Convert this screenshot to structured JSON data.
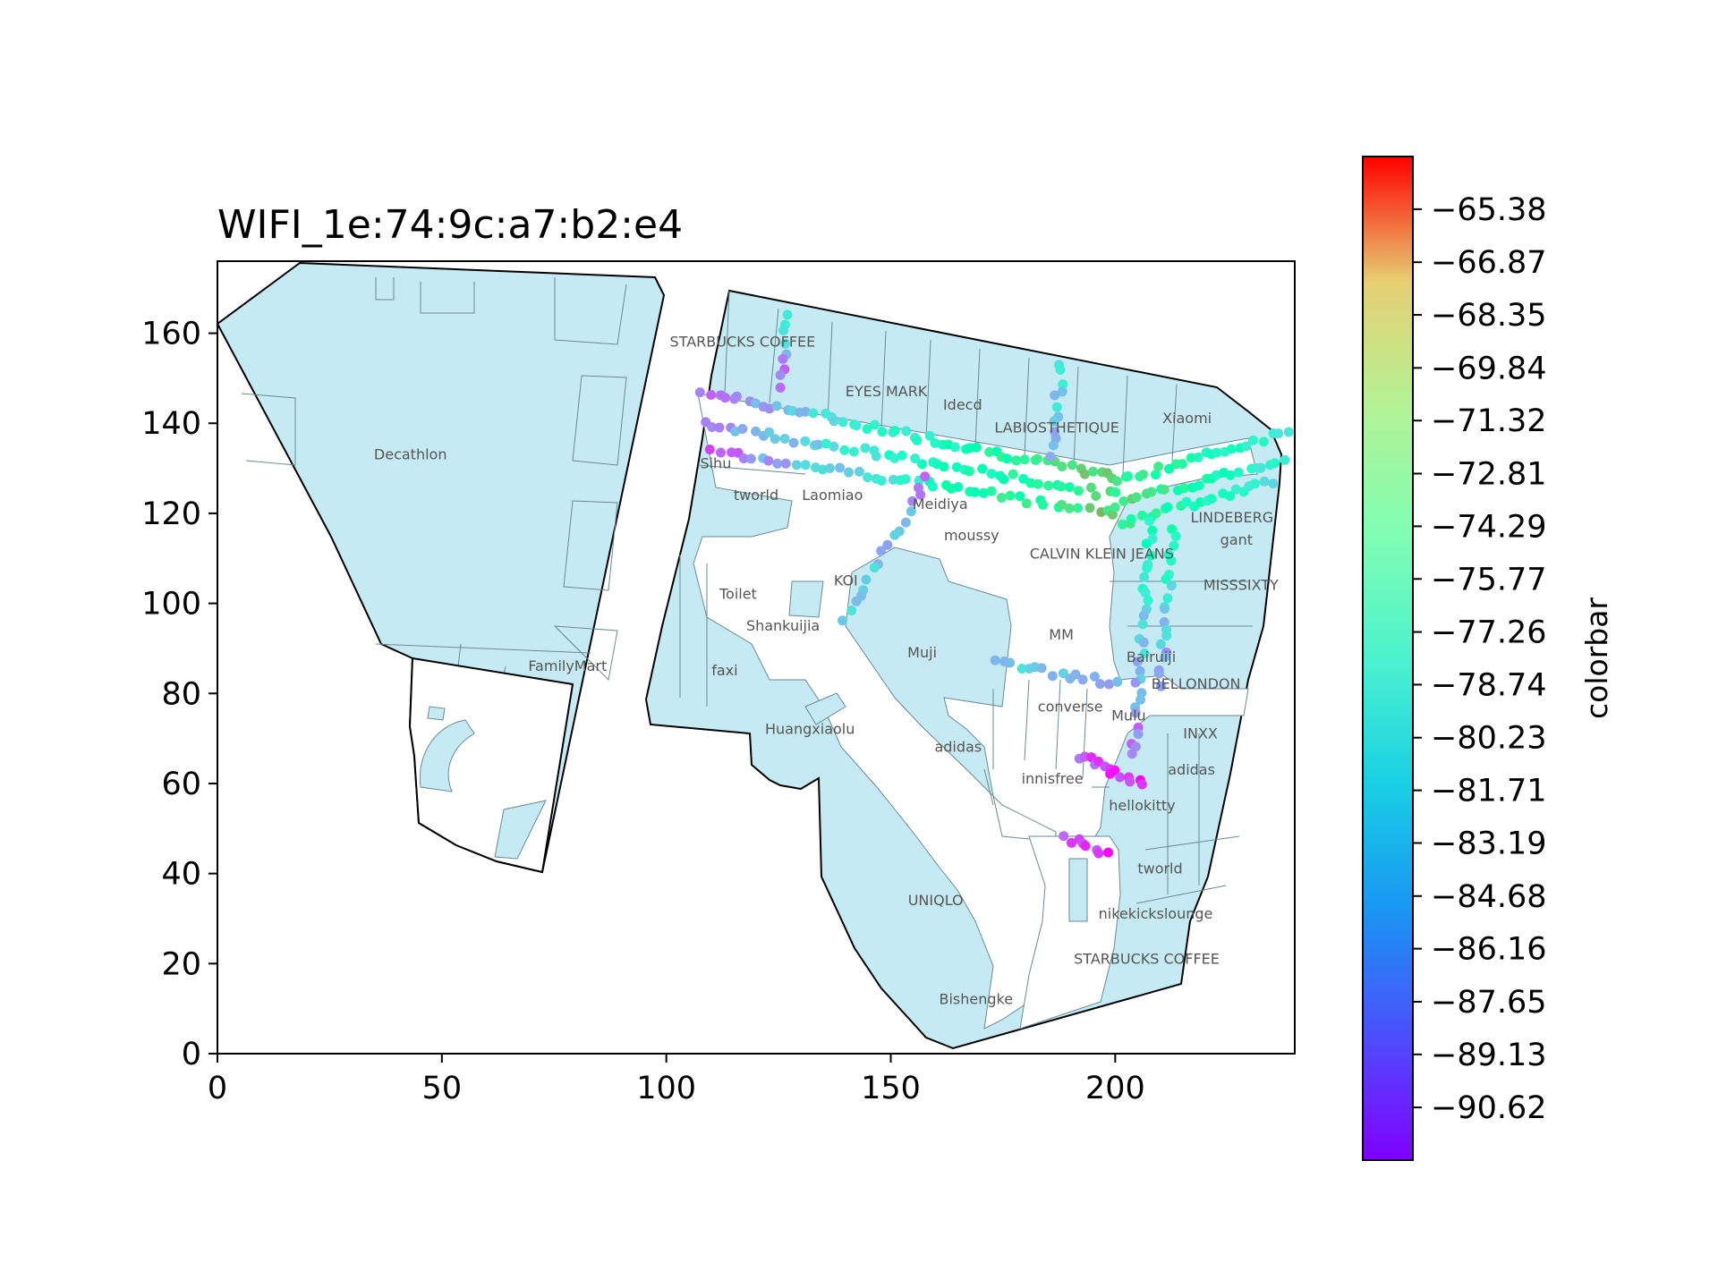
{
  "chart_data": {
    "type": "scatter",
    "title": "WIFI_1e:74:9c:a7:b2:e4",
    "xlabel": "",
    "ylabel": "",
    "xlim": [
      0,
      240
    ],
    "ylim": [
      0,
      176
    ],
    "x_ticks": [
      "0",
      "50",
      "100",
      "150",
      "200"
    ],
    "y_ticks": [
      "0",
      "20",
      "40",
      "60",
      "80",
      "100",
      "120",
      "140",
      "160"
    ],
    "grid": false,
    "colormap": "rainbow",
    "colorbar": {
      "label": "colorbar",
      "range": [
        -92.1,
        -63.9
      ],
      "ticks": [
        "−65.38",
        "−66.87",
        "−68.35",
        "−69.84",
        "−71.32",
        "−72.81",
        "−74.29",
        "−75.77",
        "−77.26",
        "−78.74",
        "−80.23",
        "−81.71",
        "−83.19",
        "−84.68",
        "−86.16",
        "−87.65",
        "−89.13",
        "−90.62"
      ]
    },
    "floor_colors": {
      "fill": "#c5eaf3",
      "edge": "#000000"
    },
    "store_labels": [
      {
        "name": "Decathlon",
        "x": 43,
        "y": 132
      },
      {
        "name": "FamilyMart",
        "x": 78,
        "y": 85
      },
      {
        "name": "STARBUCKS COFFEE",
        "x": 117,
        "y": 157
      },
      {
        "name": "EYES MARK",
        "x": 149,
        "y": 146
      },
      {
        "name": "Idecd",
        "x": 166,
        "y": 143
      },
      {
        "name": "LABIOSTHETIQUE",
        "x": 187,
        "y": 138
      },
      {
        "name": "Xiaomi",
        "x": 216,
        "y": 140
      },
      {
        "name": "Sihu",
        "x": 111,
        "y": 130
      },
      {
        "name": "tworld",
        "x": 120,
        "y": 123
      },
      {
        "name": "Laomiao",
        "x": 137,
        "y": 123
      },
      {
        "name": "Meidiya",
        "x": 161,
        "y": 121
      },
      {
        "name": "moussy",
        "x": 168,
        "y": 114
      },
      {
        "name": "CALVIN KLEIN JEANS",
        "x": 197,
        "y": 110
      },
      {
        "name": "LINDEBERG",
        "x": 226,
        "y": 118
      },
      {
        "name": "gant",
        "x": 227,
        "y": 113
      },
      {
        "name": "KOI",
        "x": 140,
        "y": 104
      },
      {
        "name": "Toilet",
        "x": 116,
        "y": 101
      },
      {
        "name": "MISSSIXTY",
        "x": 228,
        "y": 103
      },
      {
        "name": "Shankuijia",
        "x": 126,
        "y": 94
      },
      {
        "name": "MM",
        "x": 188,
        "y": 92
      },
      {
        "name": "Muji",
        "x": 157,
        "y": 88
      },
      {
        "name": "faxi",
        "x": 113,
        "y": 84
      },
      {
        "name": "Bairuiji",
        "x": 208,
        "y": 87
      },
      {
        "name": "BELLONDON",
        "x": 218,
        "y": 81
      },
      {
        "name": "converse",
        "x": 190,
        "y": 76
      },
      {
        "name": "Mulu",
        "x": 203,
        "y": 74
      },
      {
        "name": "INXX",
        "x": 219,
        "y": 70
      },
      {
        "name": "Huangxiaolu",
        "x": 132,
        "y": 71
      },
      {
        "name": "adidas",
        "x": 165,
        "y": 67
      },
      {
        "name": "adidas",
        "x": 217,
        "y": 62
      },
      {
        "name": "innisfree",
        "x": 186,
        "y": 60
      },
      {
        "name": "hellokitty",
        "x": 206,
        "y": 54
      },
      {
        "name": "tworld",
        "x": 210,
        "y": 40
      },
      {
        "name": "UNIQLO",
        "x": 160,
        "y": 33
      },
      {
        "name": "nikekickslounge",
        "x": 209,
        "y": 30
      },
      {
        "name": "STARBUCKS COFFEE",
        "x": 207,
        "y": 20
      },
      {
        "name": "Bishengke",
        "x": 169,
        "y": 11
      }
    ],
    "series_segments": [
      {
        "from": [
          127,
          164
        ],
        "to": [
          126,
          148
        ],
        "v_from": -80.0,
        "v_to": -90.0,
        "n": 9
      },
      {
        "from": [
          108,
          147
        ],
        "to": [
          200,
          128
        ],
        "v_from": -87.5,
        "v_to": -72.5,
        "n": 56
      },
      {
        "from": [
          108,
          140
        ],
        "to": [
          200,
          124
        ],
        "v_from": -86.0,
        "v_to": -74.0,
        "n": 50
      },
      {
        "from": [
          110,
          134
        ],
        "to": [
          200,
          120
        ],
        "v_from": -88.0,
        "v_to": -72.0,
        "n": 48
      },
      {
        "from": [
          200,
          127
        ],
        "to": [
          238,
          138
        ],
        "v_from": -75.0,
        "v_to": -81.0,
        "n": 24
      },
      {
        "from": [
          200,
          122
        ],
        "to": [
          238,
          132
        ],
        "v_from": -73.0,
        "v_to": -82.0,
        "n": 24
      },
      {
        "from": [
          201,
          118
        ],
        "to": [
          235,
          127
        ],
        "v_from": -74.5,
        "v_to": -83.0,
        "n": 22
      },
      {
        "from": [
          188,
          153
        ],
        "to": [
          186,
          133
        ],
        "v_from": -82.0,
        "v_to": -85.0,
        "n": 12
      },
      {
        "from": [
          158,
          128
        ],
        "to": [
          140,
          96
        ],
        "v_from": -87.0,
        "v_to": -82.5,
        "n": 18
      },
      {
        "from": [
          208,
          118
        ],
        "to": [
          204,
          66
        ],
        "v_from": -79.0,
        "v_to": -88.0,
        "n": 30
      },
      {
        "from": [
          213,
          116
        ],
        "to": [
          210,
          82
        ],
        "v_from": -78.0,
        "v_to": -87.0,
        "n": 20
      },
      {
        "from": [
          173,
          87
        ],
        "to": [
          201,
          82
        ],
        "v_from": -83.5,
        "v_to": -84.5,
        "n": 16
      },
      {
        "from": [
          192,
          66
        ],
        "to": [
          206,
          60
        ],
        "v_from": -89.5,
        "v_to": -90.5,
        "n": 14
      },
      {
        "from": [
          189,
          48
        ],
        "to": [
          198,
          44
        ],
        "v_from": -90.0,
        "v_to": -90.8,
        "n": 8
      }
    ]
  }
}
